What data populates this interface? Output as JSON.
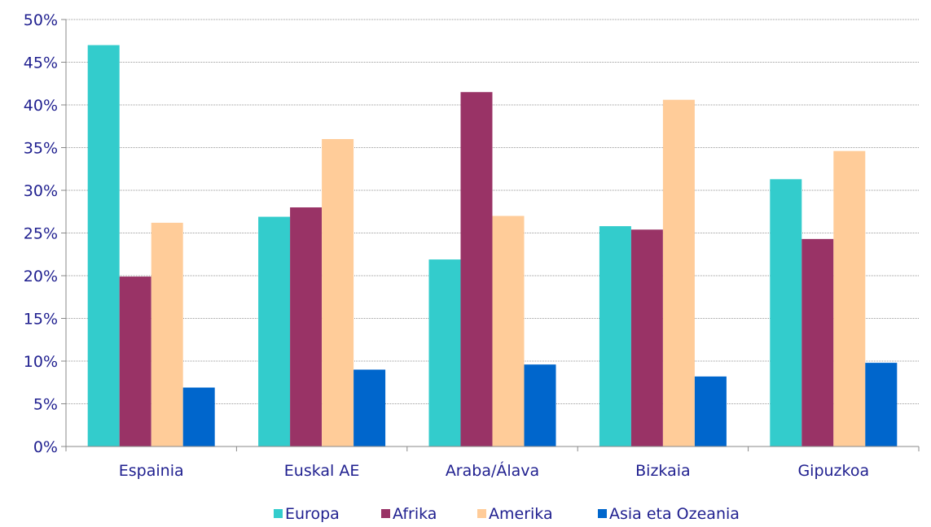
{
  "chart_data": {
    "type": "bar",
    "title": "",
    "xlabel": "",
    "ylabel": "",
    "categories": [
      "Espainia",
      "Euskal AE",
      "Araba/Álava",
      "Bizkaia",
      "Gipuzkoa"
    ],
    "series": [
      {
        "name": "Europa",
        "color": "#33cccc",
        "values": [
          47.0,
          26.9,
          21.9,
          25.8,
          31.3
        ]
      },
      {
        "name": "Afrika",
        "color": "#993366",
        "values": [
          19.9,
          28.0,
          41.5,
          25.4,
          24.3
        ]
      },
      {
        "name": "Amerika",
        "color": "#ffcc99",
        "values": [
          26.2,
          36.0,
          27.0,
          40.6,
          34.6
        ]
      },
      {
        "name": "Asia eta Ozeania",
        "color": "#0066cc",
        "values": [
          6.9,
          9.0,
          9.6,
          8.2,
          9.8
        ]
      }
    ],
    "ylim": [
      0,
      50
    ],
    "yticks": [
      "0%",
      "5%",
      "10%",
      "15%",
      "20%",
      "25%",
      "30%",
      "35%",
      "40%",
      "45%",
      "50%"
    ],
    "grid": true,
    "legend_position": "bottom"
  }
}
